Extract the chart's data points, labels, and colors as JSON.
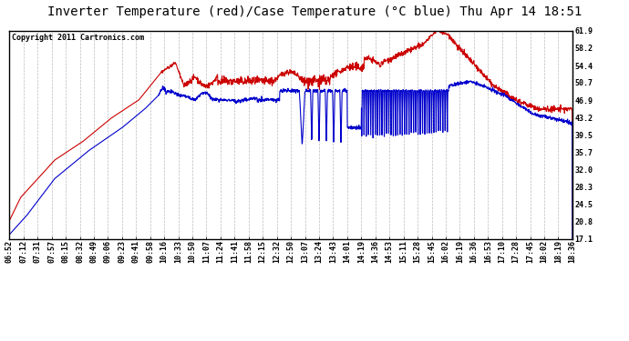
{
  "title": "Inverter Temperature (red)/Case Temperature (°C blue) Thu Apr 14 18:51",
  "copyright_text": "Copyright 2011 Cartronics.com",
  "background_color": "#ffffff",
  "plot_bg_color": "#ffffff",
  "grid_color": "#bbbbbb",
  "border_color": "#000000",
  "line_color_red": "#cc0000",
  "line_color_blue": "#0000cc",
  "y_ticks": [
    17.1,
    20.8,
    24.5,
    28.3,
    32.0,
    35.7,
    39.5,
    43.2,
    46.9,
    50.7,
    54.4,
    58.2,
    61.9
  ],
  "ylim": [
    17.1,
    61.9
  ],
  "x_labels": [
    "06:52",
    "07:12",
    "07:31",
    "07:57",
    "08:15",
    "08:32",
    "08:49",
    "09:06",
    "09:23",
    "09:41",
    "09:58",
    "10:16",
    "10:33",
    "10:50",
    "11:07",
    "11:24",
    "11:41",
    "11:58",
    "12:15",
    "12:32",
    "12:50",
    "13:07",
    "13:24",
    "13:43",
    "14:01",
    "14:19",
    "14:36",
    "14:53",
    "15:11",
    "15:28",
    "15:45",
    "16:02",
    "16:19",
    "16:36",
    "16:53",
    "17:10",
    "17:28",
    "17:45",
    "18:02",
    "18:19",
    "18:36"
  ],
  "title_fontsize": 10,
  "copyright_fontsize": 6,
  "tick_fontsize": 6,
  "linewidth": 0.8
}
